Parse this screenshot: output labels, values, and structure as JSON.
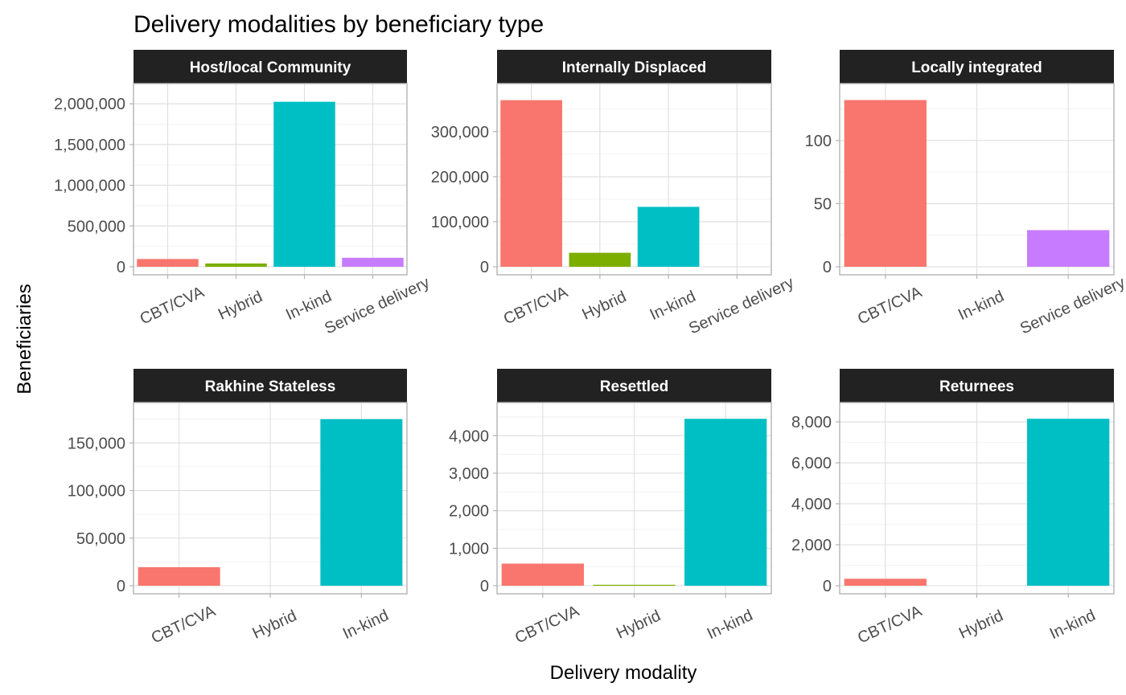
{
  "chart_data": {
    "type": "bar",
    "title": "Delivery modalities by beneficiary type",
    "xlabel": "Delivery modality",
    "ylabel": "Beneficiaries",
    "grid": true,
    "legend": "none",
    "colors": {
      "CBT/CVA": "#F8766D",
      "Hybrid": "#7CAE00",
      "In-kind": "#00BFC4",
      "Service delivery": "#C77CFF"
    },
    "panels": [
      {
        "label": "Host/local Community",
        "categories": [
          "CBT/CVA",
          "Hybrid",
          "In-kind",
          "Service delivery"
        ],
        "values": [
          95000,
          40000,
          2025000,
          110000
        ],
        "ylim": [
          0,
          2150000
        ],
        "yticks": [
          0,
          500000,
          1000000,
          1500000,
          2000000
        ],
        "ytick_labels": [
          "0",
          "500,000",
          "1,000,000",
          "1,500,000",
          "2,000,000"
        ]
      },
      {
        "label": "Internally Displaced",
        "categories": [
          "CBT/CVA",
          "Hybrid",
          "In-kind",
          "Service delivery"
        ],
        "values": [
          370000,
          31000,
          133000,
          0
        ],
        "ylim": [
          0,
          389000
        ],
        "yticks": [
          0,
          100000,
          200000,
          300000
        ],
        "ytick_labels": [
          "0",
          "100,000",
          "200,000",
          "300,000"
        ]
      },
      {
        "label": "Locally integrated",
        "categories": [
          "CBT/CVA",
          "In-kind",
          "Service delivery"
        ],
        "values": [
          132,
          0,
          29
        ],
        "ylim": [
          0,
          138.7
        ],
        "yticks": [
          0,
          50,
          100
        ],
        "ytick_labels": [
          "0",
          "50",
          "100"
        ]
      },
      {
        "label": "Rakhine Stateless",
        "categories": [
          "CBT/CVA",
          "Hybrid",
          "In-kind"
        ],
        "values": [
          19500,
          0,
          175000
        ],
        "ylim": [
          0,
          184000
        ],
        "yticks": [
          0,
          50000,
          100000,
          150000
        ],
        "ytick_labels": [
          "0",
          "50,000",
          "100,000",
          "150,000"
        ]
      },
      {
        "label": "Resettled",
        "categories": [
          "CBT/CVA",
          "Hybrid",
          "In-kind"
        ],
        "values": [
          590,
          25,
          4450
        ],
        "ylim": [
          0,
          4670
        ],
        "yticks": [
          0,
          1000,
          2000,
          3000,
          4000
        ],
        "ytick_labels": [
          "0",
          "1,000",
          "2,000",
          "3,000",
          "4,000"
        ]
      },
      {
        "label": "Returnees",
        "categories": [
          "CBT/CVA",
          "Hybrid",
          "In-kind"
        ],
        "values": [
          340,
          0,
          8150
        ],
        "ylim": [
          0,
          8550
        ],
        "yticks": [
          0,
          2000,
          4000,
          6000,
          8000
        ],
        "ytick_labels": [
          "0",
          "2,000",
          "4,000",
          "6,000",
          "8,000"
        ]
      }
    ]
  }
}
